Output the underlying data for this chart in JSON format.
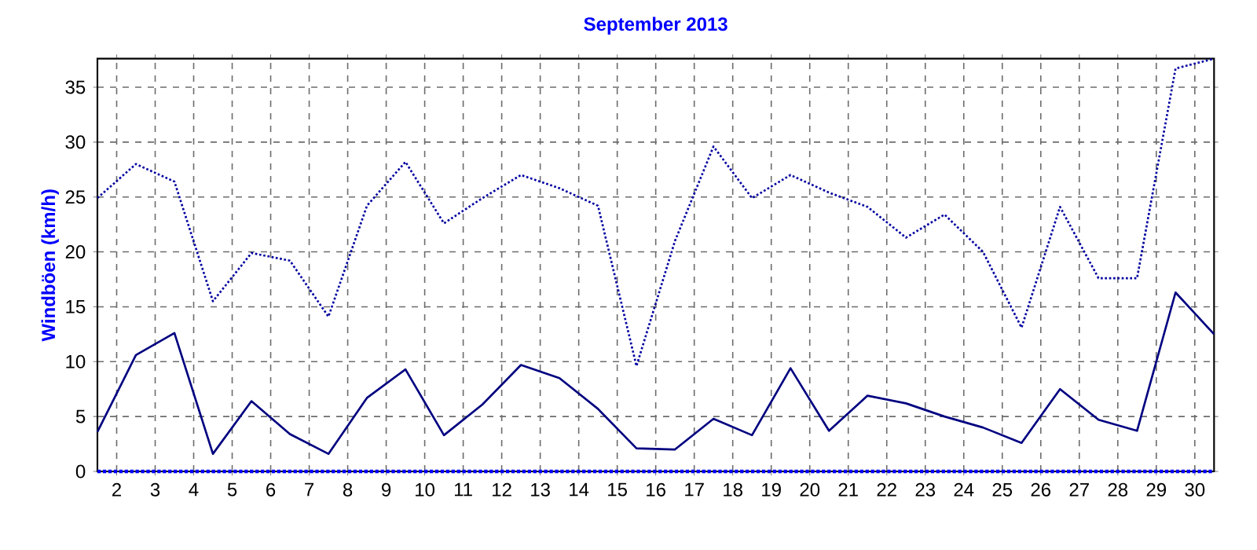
{
  "chart_data": {
    "type": "line",
    "title": "September 2013",
    "ylabel": "Windböen (km/h)",
    "x": [
      1.5,
      2.5,
      3.5,
      4.5,
      5.5,
      6.5,
      7.5,
      8.5,
      9.5,
      10.5,
      11.5,
      12.5,
      13.5,
      14.5,
      15.5,
      16.5,
      17.5,
      18.5,
      19.5,
      20.5,
      21.5,
      22.5,
      23.5,
      24.5,
      25.5,
      26.5,
      27.5,
      28.5,
      29.5,
      30.5
    ],
    "series": [
      {
        "color": "#000080",
        "line_style": "solid",
        "values": [
          3.6,
          10.6,
          12.6,
          1.6,
          6.4,
          3.4,
          1.6,
          6.7,
          9.3,
          3.3,
          6.1,
          9.7,
          8.5,
          5.7,
          2.1,
          2.0,
          4.8,
          3.3,
          9.4,
          3.7,
          6.9,
          6.2,
          5.0,
          4.0,
          2.6,
          7.5,
          4.7,
          3.7,
          16.3,
          12.5
        ]
      },
      {
        "color": "#0000a0",
        "line_style": "dotted",
        "values": [
          24.9,
          28.0,
          26.4,
          15.5,
          19.9,
          19.2,
          14.1,
          24.2,
          28.2,
          22.6,
          24.9,
          27.0,
          25.8,
          24.2,
          9.6,
          21.0,
          29.6,
          24.9,
          27.0,
          25.4,
          24.1,
          21.3,
          23.4,
          20.0,
          13.1,
          24.1,
          17.6,
          17.6,
          36.7,
          37.6
        ]
      },
      {
        "color": "#0000ff",
        "line_style": "dotted",
        "values": [
          0,
          0,
          0,
          0,
          0,
          0,
          0,
          0,
          0,
          0,
          0,
          0,
          0,
          0,
          0,
          0,
          0,
          0,
          0,
          0,
          0,
          0,
          0,
          0,
          0,
          0,
          0,
          0,
          0,
          0
        ]
      }
    ],
    "xlim": [
      1.5,
      30.5
    ],
    "ylim": [
      0,
      37.6
    ],
    "xticks": [
      2,
      3,
      4,
      5,
      6,
      7,
      8,
      9,
      10,
      11,
      12,
      13,
      14,
      15,
      16,
      17,
      18,
      19,
      20,
      21,
      22,
      23,
      24,
      25,
      26,
      27,
      28,
      29,
      30
    ],
    "yticks": [
      0,
      5,
      10,
      15,
      20,
      25,
      30,
      35
    ],
    "grid": true,
    "legend": false,
    "marker": "none"
  }
}
